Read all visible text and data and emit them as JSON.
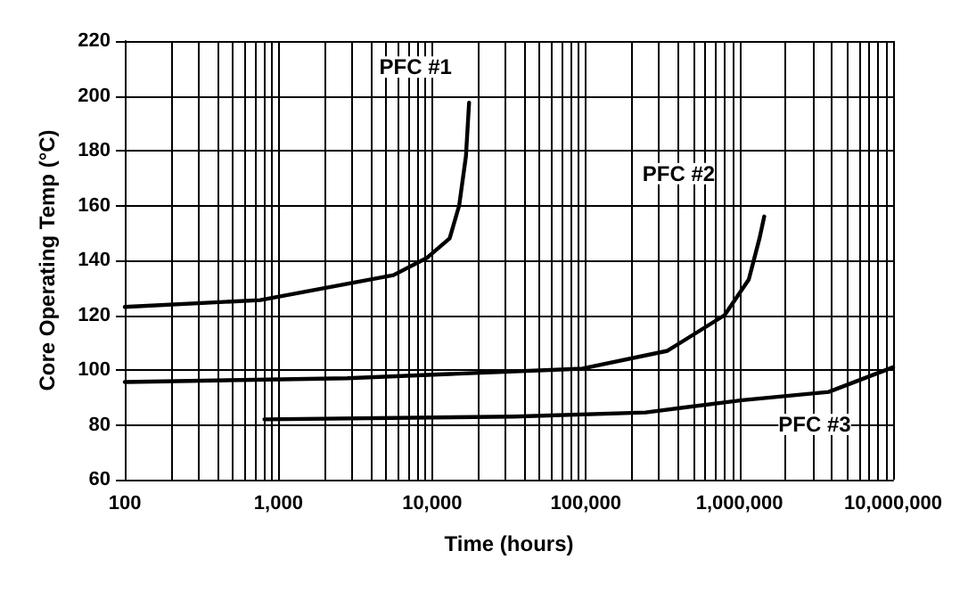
{
  "chart_data": {
    "type": "line",
    "xlabel": "Time (hours)",
    "ylabel": "Core Operating Temp (°C)",
    "log": "x",
    "xlim": [
      100,
      10000000
    ],
    "ylim": [
      60,
      220
    ],
    "xticks": [
      {
        "value": 100,
        "label": "100"
      },
      {
        "value": 200,
        "label": null
      },
      {
        "value": 300,
        "label": null
      },
      {
        "value": 400,
        "label": null
      },
      {
        "value": 500,
        "label": null
      },
      {
        "value": 600,
        "label": null
      },
      {
        "value": 700,
        "label": null
      },
      {
        "value": 800,
        "label": null
      },
      {
        "value": 900,
        "label": null
      },
      {
        "value": 1000,
        "label": "1,000"
      },
      {
        "value": 2000,
        "label": null
      },
      {
        "value": 3000,
        "label": null
      },
      {
        "value": 4000,
        "label": null
      },
      {
        "value": 5000,
        "label": null
      },
      {
        "value": 6000,
        "label": null
      },
      {
        "value": 7000,
        "label": null
      },
      {
        "value": 8000,
        "label": null
      },
      {
        "value": 9000,
        "label": null
      },
      {
        "value": 10000,
        "label": "10,000"
      },
      {
        "value": 20000,
        "label": null
      },
      {
        "value": 30000,
        "label": null
      },
      {
        "value": 40000,
        "label": null
      },
      {
        "value": 50000,
        "label": null
      },
      {
        "value": 60000,
        "label": null
      },
      {
        "value": 70000,
        "label": null
      },
      {
        "value": 80000,
        "label": null
      },
      {
        "value": 90000,
        "label": null
      },
      {
        "value": 100000,
        "label": "100,000"
      },
      {
        "value": 200000,
        "label": null
      },
      {
        "value": 300000,
        "label": null
      },
      {
        "value": 400000,
        "label": null
      },
      {
        "value": 500000,
        "label": null
      },
      {
        "value": 600000,
        "label": null
      },
      {
        "value": 700000,
        "label": null
      },
      {
        "value": 800000,
        "label": null
      },
      {
        "value": 900000,
        "label": null
      },
      {
        "value": 1000000,
        "label": "1,000,000"
      },
      {
        "value": 2000000,
        "label": null
      },
      {
        "value": 3000000,
        "label": null
      },
      {
        "value": 4000000,
        "label": null
      },
      {
        "value": 5000000,
        "label": null
      },
      {
        "value": 6000000,
        "label": null
      },
      {
        "value": 7000000,
        "label": null
      },
      {
        "value": 8000000,
        "label": null
      },
      {
        "value": 9000000,
        "label": null
      },
      {
        "value": 10000000,
        "label": "10,000,000"
      }
    ],
    "yticks": [
      60,
      80,
      100,
      120,
      140,
      160,
      180,
      200,
      220
    ],
    "grid": true,
    "marker": "none",
    "line_style": "solid",
    "series": [
      {
        "name": "PFC #1",
        "color": "#000000",
        "x": [
          100,
          760,
          5600,
          9300,
          13000,
          15000,
          16600,
          17400
        ],
        "values": [
          123,
          125.5,
          134.6,
          141,
          148,
          160,
          178,
          197.5
        ]
      },
      {
        "name": "PFC #2",
        "color": "#000000",
        "x": [
          100,
          2800,
          95000,
          340000,
          800000,
          1150000,
          1350000,
          1450000
        ],
        "values": [
          95.6,
          97,
          100.5,
          107,
          120,
          133,
          148,
          156
        ]
      },
      {
        "name": "PFC #3",
        "color": "#000000",
        "x": [
          810,
          34000,
          245000,
          1040000,
          3800000,
          10000000
        ],
        "values": [
          82,
          83,
          84.5,
          89,
          92,
          101
        ]
      }
    ]
  }
}
